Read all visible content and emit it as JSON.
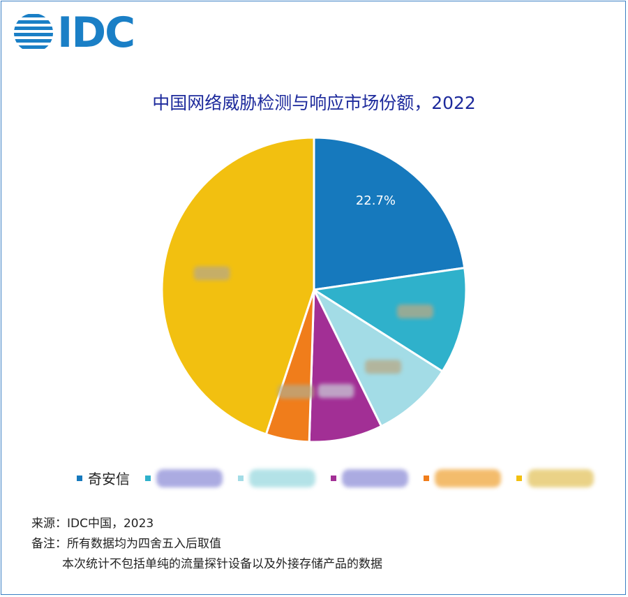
{
  "logo": {
    "text": "IDC"
  },
  "chart_data": {
    "type": "pie",
    "title": "中国网络威胁检测与响应市场份额，2022",
    "slices": [
      {
        "label": "奇安信",
        "value": 22.7,
        "color": "#1679bd",
        "value_label": "22.7%",
        "redacted": false
      },
      {
        "label": "",
        "value": 11.3,
        "color": "#2fb1cb",
        "value_label": "",
        "redacted": true
      },
      {
        "label": "",
        "value": 8.7,
        "color": "#a3dce6",
        "value_label": "",
        "redacted": true
      },
      {
        "label": "",
        "value": 7.8,
        "color": "#a22f95",
        "value_label": "",
        "redacted": true
      },
      {
        "label": "",
        "value": 4.6,
        "color": "#f07d1b",
        "value_label": "",
        "redacted": true
      },
      {
        "label": "",
        "value": 44.9,
        "color": "#f2c010",
        "value_label": "",
        "redacted": true
      }
    ]
  },
  "legend": {
    "items": [
      {
        "label": "奇安信",
        "color": "#1679bd"
      },
      {
        "label": "",
        "color": "#2fb1cb"
      },
      {
        "label": "",
        "color": "#a3dce6"
      },
      {
        "label": "",
        "color": "#a22f95"
      },
      {
        "label": "",
        "color": "#f07d1b"
      },
      {
        "label": "",
        "color": "#f2c010"
      }
    ]
  },
  "notes": {
    "source": "来源：IDC中国，2023",
    "remark": "备注：所有数据均为四舍五入后取值",
    "remark2": "本次统计不包括单纯的流量探针设备以及外接存储产品的数据"
  }
}
